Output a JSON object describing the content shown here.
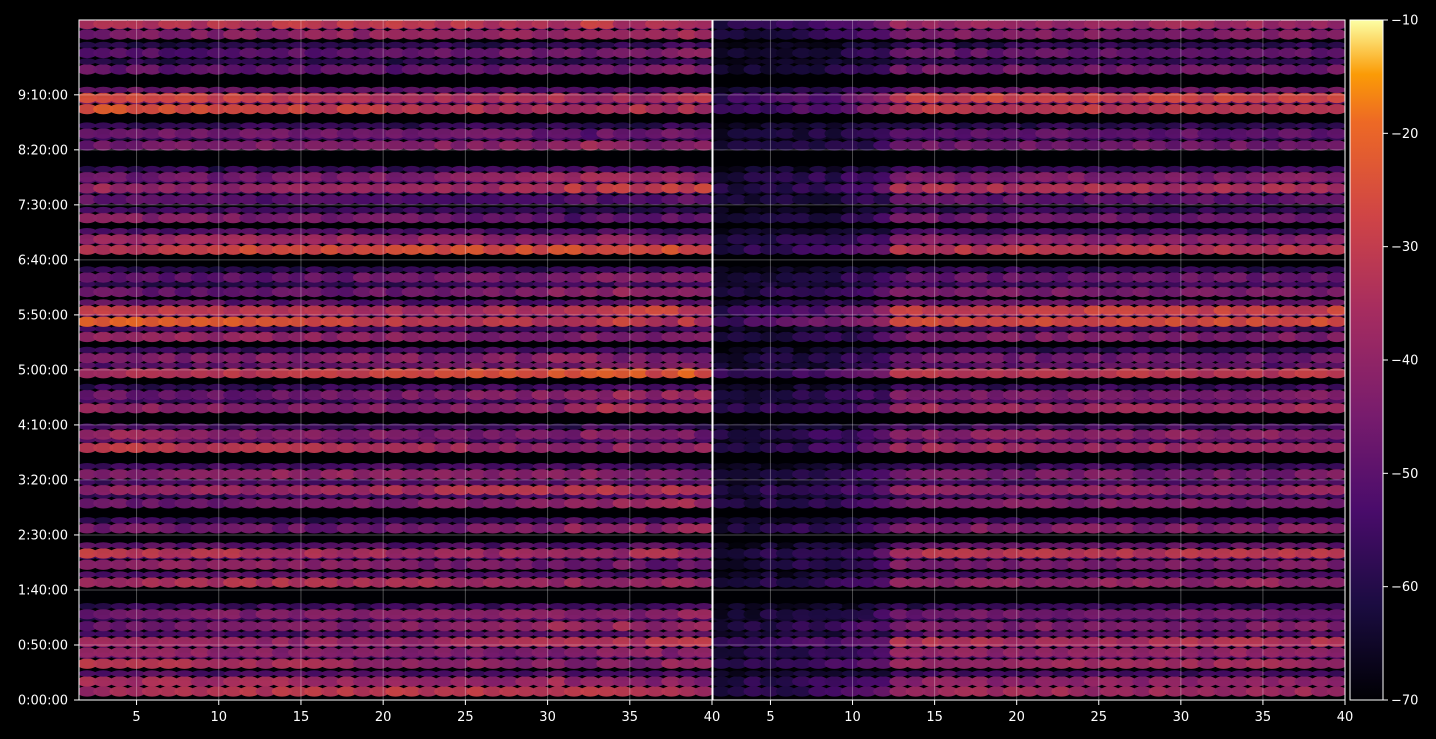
{
  "chart_data": {
    "type": "heatmap",
    "colormap": "inferno",
    "background": "#000000",
    "grid": true,
    "panels": [
      {
        "xlim": [
          1.5,
          40
        ],
        "xticks": [
          5,
          10,
          15,
          20,
          25,
          30,
          35,
          40
        ],
        "ylim": [
          0,
          10.3
        ],
        "yticks": [
          {
            "value": 0,
            "label": "0:00:00"
          },
          {
            "value": 0.8333,
            "label": "0:50:00"
          },
          {
            "value": 1.6667,
            "label": "1:40:00"
          },
          {
            "value": 2.5,
            "label": "2:30:00"
          },
          {
            "value": 3.3333,
            "label": "3:20:00"
          },
          {
            "value": 4.1667,
            "label": "4:10:00"
          },
          {
            "value": 5.0,
            "label": "5:00:00"
          },
          {
            "value": 5.8333,
            "label": "5:50:00"
          },
          {
            "value": 6.6667,
            "label": "6:40:00"
          },
          {
            "value": 7.5,
            "label": "7:30:00"
          },
          {
            "value": 8.3333,
            "label": "8:20:00"
          },
          {
            "value": 9.1667,
            "label": "9:10:00"
          }
        ]
      },
      {
        "xlim": [
          1.5,
          40
        ],
        "xticks": [
          5,
          10,
          15,
          20,
          25,
          30,
          35,
          40
        ],
        "ylim": [
          0,
          10.3
        ]
      }
    ],
    "colorbar": {
      "min": -70,
      "max": -10,
      "ticks": [
        {
          "value": -10,
          "label": "−10"
        },
        {
          "value": -20,
          "label": "−20"
        },
        {
          "value": -30,
          "label": "−30"
        },
        {
          "value": -40,
          "label": "−40"
        },
        {
          "value": -50,
          "label": "−50"
        },
        {
          "value": -60,
          "label": "−60"
        },
        {
          "value": -70,
          "label": "−70"
        }
      ]
    },
    "bands": [
      {
        "y": 0.13,
        "level": 0.62,
        "late": 0.45
      },
      {
        "y": 0.28,
        "level": 0.55,
        "late": 0.42
      },
      {
        "y": 0.55,
        "level": 0.62,
        "late": 0.48
      },
      {
        "y": 0.72,
        "level": 0.58,
        "late": 0.4
      },
      {
        "y": 0.88,
        "level": 0.68,
        "late": 0.5
      },
      {
        "y": 1.12,
        "level": 0.5,
        "late": 0.38
      },
      {
        "y": 1.3,
        "level": 0.45,
        "late": 0.3
      },
      {
        "y": 1.78,
        "level": 0.58,
        "late": 0.4
      },
      {
        "y": 2.05,
        "level": 0.5,
        "late": 0.32
      },
      {
        "y": 2.22,
        "level": 0.72,
        "late": 0.4
      },
      {
        "y": 2.6,
        "level": 0.52,
        "late": 0.38
      },
      {
        "y": 2.98,
        "level": 0.5,
        "late": 0.4
      },
      {
        "y": 3.18,
        "level": 0.58,
        "late": 0.42
      },
      {
        "y": 3.42,
        "level": 0.48,
        "late": 0.35
      },
      {
        "y": 3.82,
        "level": 0.62,
        "late": 0.45
      },
      {
        "y": 4.02,
        "level": 0.55,
        "late": 0.4
      },
      {
        "y": 4.42,
        "level": 0.62,
        "late": 0.45
      },
      {
        "y": 4.62,
        "level": 0.5,
        "late": 0.36
      },
      {
        "y": 4.95,
        "level": 0.72,
        "late": 0.55
      },
      {
        "y": 5.18,
        "level": 0.45,
        "late": 0.32
      },
      {
        "y": 5.5,
        "level": 0.5,
        "late": 0.35
      },
      {
        "y": 5.73,
        "level": 0.82,
        "late": 0.68
      },
      {
        "y": 5.9,
        "level": 0.78,
        "late": 0.58
      },
      {
        "y": 6.18,
        "level": 0.48,
        "late": 0.38
      },
      {
        "y": 6.4,
        "level": 0.42,
        "late": 0.3
      },
      {
        "y": 6.82,
        "level": 0.72,
        "late": 0.48
      },
      {
        "y": 6.98,
        "level": 0.52,
        "late": 0.38
      },
      {
        "y": 7.3,
        "level": 0.45,
        "late": 0.3
      },
      {
        "y": 7.58,
        "level": 0.4,
        "late": 0.28
      },
      {
        "y": 7.75,
        "level": 0.68,
        "late": 0.42
      },
      {
        "y": 7.92,
        "level": 0.5,
        "late": 0.36
      },
      {
        "y": 8.4,
        "level": 0.45,
        "late": 0.3
      },
      {
        "y": 8.58,
        "level": 0.4,
        "late": 0.28
      },
      {
        "y": 8.95,
        "level": 0.72,
        "late": 0.58
      },
      {
        "y": 9.12,
        "level": 0.78,
        "late": 0.62
      },
      {
        "y": 9.55,
        "level": 0.45,
        "late": 0.3
      },
      {
        "y": 9.8,
        "level": 0.42,
        "late": 0.28
      },
      {
        "y": 10.08,
        "level": 0.52,
        "late": 0.38
      },
      {
        "y": 10.24,
        "level": 0.62,
        "late": 0.45
      }
    ]
  }
}
